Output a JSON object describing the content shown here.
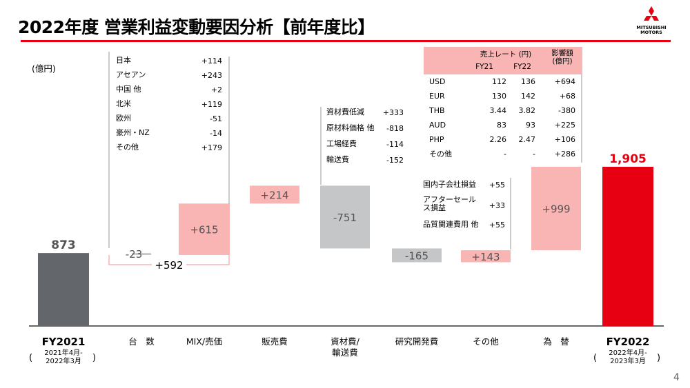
{
  "title": "2022年度 営業利益変動要因分析【前年度比】",
  "logo_text": [
    "MITSUBISHI",
    "MOTORS"
  ],
  "unit": "(億円)",
  "page_number": "4",
  "colors": {
    "brand_red": "#e60012",
    "dark_gray": "#63676b",
    "light_gray": "#c4c6c8",
    "light_red": "#f9b4b4",
    "fx_header": "#f9b4b4"
  },
  "volume_breakdown": [
    {
      "label": "日本",
      "value": "+114"
    },
    {
      "label": "アセアン",
      "value": "+243"
    },
    {
      "label": "中国 他",
      "value": "+2"
    },
    {
      "label": "北米",
      "value": "+119"
    },
    {
      "label": "欧州",
      "value": "-51"
    },
    {
      "label": "豪州・NZ",
      "value": "-14"
    },
    {
      "label": "その他",
      "value": "+179"
    }
  ],
  "material_breakdown": [
    {
      "label": "資材費低減",
      "value": "+333"
    },
    {
      "label": "原材料価格 他",
      "value": "-818"
    },
    {
      "label": "工場経費",
      "value": "-114"
    },
    {
      "label": "輸送費",
      "value": "-152"
    }
  ],
  "other_breakdown": [
    {
      "label": "国内子会社損益",
      "value": "+55"
    },
    {
      "label": "アフターセール\nス損益",
      "value": "+33"
    },
    {
      "label": "品質関連費用 他",
      "value": "+55"
    }
  ],
  "fx_table": {
    "header_rate": "売上レート (円)",
    "header_impact": "影響額\n(億円)",
    "header_fy21": "FY21",
    "header_fy22": "FY22",
    "rows": [
      {
        "currency": "USD",
        "fy21": "112",
        "fy22": "136",
        "impact": "+694"
      },
      {
        "currency": "EUR",
        "fy21": "130",
        "fy22": "142",
        "impact": "+68"
      },
      {
        "currency": "THB",
        "fy21": "3.44",
        "fy22": "3.82",
        "impact": "-380"
      },
      {
        "currency": "AUD",
        "fy21": "83",
        "fy22": "93",
        "impact": "+225"
      },
      {
        "currency": "PHP",
        "fy21": "2.26",
        "fy22": "2.47",
        "impact": "+106"
      },
      {
        "currency": "その他",
        "fy21": "-",
        "fy22": "-",
        "impact": "+286"
      }
    ]
  },
  "chart_data": {
    "type": "bar",
    "subtype": "waterfall",
    "title": "2022年度 営業利益変動要因分析【前年度比】",
    "ylabel": "(億円)",
    "categories": [
      "FY2021",
      "台　数",
      "MIX/売価",
      "販売費",
      "資材費/\n輸送費",
      "研究開発費",
      "その他",
      "為　替",
      "FY2022"
    ],
    "category_sublabels": [
      "2021年4月-\n2022年3月",
      "",
      "",
      "",
      "",
      "",
      "",
      "",
      "2022年4月-\n2023年3月"
    ],
    "values": [
      873,
      -23,
      615,
      214,
      -751,
      -165,
      143,
      999,
      1905
    ],
    "value_labels": [
      "873",
      "-23",
      "+615",
      "+214",
      "-751",
      "-165",
      "+143",
      "+999",
      "1,905"
    ],
    "bracket": {
      "categories": [
        "台　数",
        "MIX/売価"
      ],
      "label": "+592",
      "value": 592
    },
    "ylim": [
      0,
      1905
    ],
    "grid": false,
    "legend": "none"
  }
}
